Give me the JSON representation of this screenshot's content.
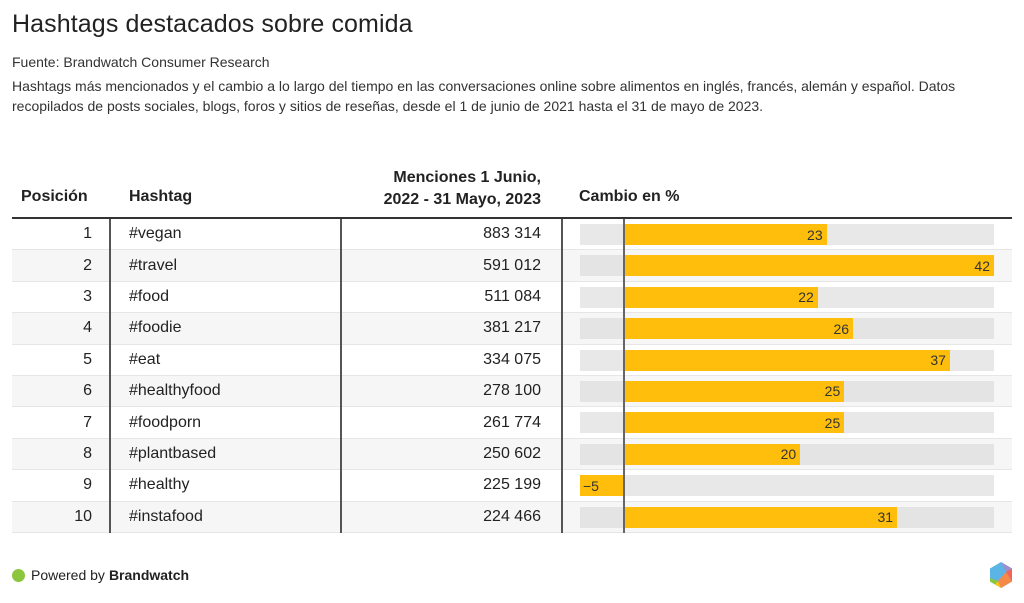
{
  "header": {
    "title": "Hashtags destacados sobre comida",
    "source": "Fuente: Brandwatch Consumer Research",
    "description": "Hashtags más mencionados y el cambio a lo largo del tiempo en las conversaciones online sobre alimentos en inglés, francés, alemán y español. Datos recopilados de posts sociales, blogs, foros y sitios de reseñas, desde el 1 de junio de 2021 hasta el 31 de mayo de 2023."
  },
  "table": {
    "columns": {
      "position": "Posición",
      "hashtag": "Hashtag",
      "mentions_line1": "Menciones 1 Junio,",
      "mentions_line2": "2022 - 31 Mayo, 2023",
      "change": "Cambio en %"
    }
  },
  "chart_data": {
    "type": "table",
    "title": "Hashtags destacados sobre comida",
    "columns": [
      "Posición",
      "Hashtag",
      "Menciones 1 Junio, 2022 - 31 Mayo, 2023",
      "Cambio en %"
    ],
    "bar_column": "Cambio en %",
    "bar_domain": [
      -5,
      42
    ],
    "rows": [
      {
        "position": "1",
        "hashtag": "#vegan",
        "mentions": "883 314",
        "change": 23
      },
      {
        "position": "2",
        "hashtag": "#travel",
        "mentions": "591 012",
        "change": 42
      },
      {
        "position": "3",
        "hashtag": "#food",
        "mentions": "511 084",
        "change": 22
      },
      {
        "position": "4",
        "hashtag": "#foodie",
        "mentions": "381 217",
        "change": 26
      },
      {
        "position": "5",
        "hashtag": "#eat",
        "mentions": "334 075",
        "change": 37
      },
      {
        "position": "6",
        "hashtag": "#healthyfood",
        "mentions": "278 100",
        "change": 25
      },
      {
        "position": "7",
        "hashtag": "#foodporn",
        "mentions": "261 774",
        "change": 25
      },
      {
        "position": "8",
        "hashtag": "#plantbased",
        "mentions": "250 602",
        "change": 20
      },
      {
        "position": "9",
        "hashtag": "#healthy",
        "mentions": "225 199",
        "change": -5
      },
      {
        "position": "10",
        "hashtag": "#instafood",
        "mentions": "224 466",
        "change": 31
      }
    ],
    "colors": {
      "bar": "#ffbe0b",
      "track": "#e8e8e8"
    }
  },
  "footer": {
    "powered_by": "Powered by",
    "brand": "Brandwatch",
    "icon": "brandwatch-hexagon-logo"
  }
}
